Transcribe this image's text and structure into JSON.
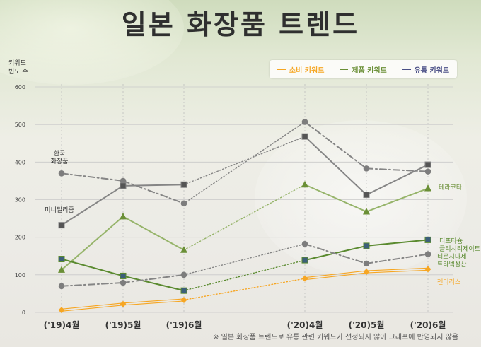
{
  "title": "일본 화장품 트렌드",
  "footnote": "※ 일본 화장품 트렌드로 유통 관련 키워드가 선정되지 않아 그래프에 반영되지 않음",
  "legend": [
    {
      "label": "소비 키워드",
      "color": "#f6a623"
    },
    {
      "label": "제품 키워드",
      "color": "#6a8f36"
    },
    {
      "label": "유통 키워드",
      "color": "#4a4f86"
    }
  ],
  "chart_data": {
    "type": "line",
    "title": "일본 화장품 트렌드",
    "ylabel_lines": [
      "키워드",
      "빈도 수"
    ],
    "xlabel": "",
    "ylim": [
      0,
      600
    ],
    "yticks": [
      0,
      100,
      200,
      300,
      400,
      500,
      600
    ],
    "categories": [
      "('19)4월",
      "('19)5월",
      "('19)6월",
      "('20)4월",
      "('20)5월",
      "('20)6월"
    ],
    "grid": true,
    "legend_position": "top-right",
    "series": [
      {
        "name": "한국 화장품",
        "label_lines": [
          "한국",
          "화장품"
        ],
        "values": [
          370,
          350,
          290,
          507,
          383,
          375
        ],
        "color": "#858585",
        "marker": "circle",
        "style": "dashdot"
      },
      {
        "name": "미니멀리즘",
        "label_lines": [
          "미니멀리즘"
        ],
        "values": [
          232,
          337,
          340,
          468,
          313,
          393
        ],
        "color": "#858585",
        "marker": "square",
        "style": "solid"
      },
      {
        "name": "테라코타",
        "label_lines": [
          "테라코타"
        ],
        "values": [
          113,
          255,
          166,
          340,
          268,
          330
        ],
        "color": "#96b46a",
        "marker": "triangle",
        "style": "solid"
      },
      {
        "name": "디포타슘 글리시리제이트",
        "label_lines": [
          "디포타슘",
          "글리시리제이트"
        ],
        "values": [
          142,
          97,
          58,
          139,
          177,
          193
        ],
        "color": "#5a8a2f",
        "marker": "square",
        "style": "solid"
      },
      {
        "name": "티로시나제 트라넥삼산",
        "label_lines": [
          "티로시나제",
          "트라넥삼산"
        ],
        "values": [
          70,
          79,
          100,
          182,
          130,
          155
        ],
        "color": "#858585",
        "marker": "circle",
        "style": "dashdot"
      },
      {
        "name": "젠더리스",
        "label_lines": [
          "젠더리스"
        ],
        "values": [
          6,
          22,
          33,
          90,
          108,
          115
        ],
        "color": "#f6a623",
        "marker": "diamond",
        "style": "double"
      }
    ]
  }
}
